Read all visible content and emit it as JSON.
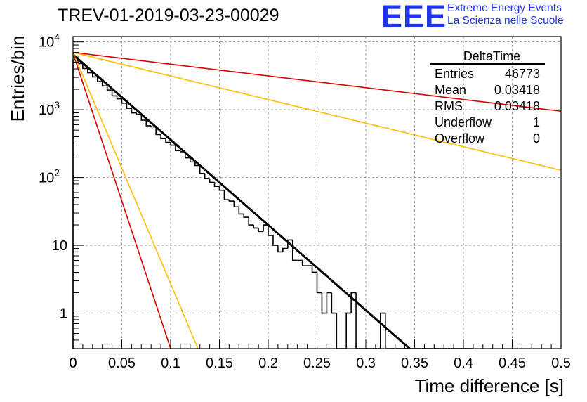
{
  "title": "TREV-01-2019-03-23-00029",
  "logo": {
    "text": "EEE",
    "line1": "Extreme Energy Events",
    "line2": "La Scienza nelle Scuole",
    "color": "#1f35e6"
  },
  "stats_box": {
    "name": "DeltaTime",
    "rows": [
      {
        "label": "Entries",
        "value": "46773"
      },
      {
        "label": "Mean",
        "value": "0.03418"
      },
      {
        "label": "RMS",
        "value": "0.03418"
      },
      {
        "label": "Underflow",
        "value": "1"
      },
      {
        "label": "Overflow",
        "value": "0"
      }
    ]
  },
  "chart_data": {
    "type": "histogram",
    "title": "TREV-01-2019-03-23-00029",
    "xlabel": "Time difference [s]",
    "ylabel": "Entries/bin",
    "xlim": [
      0,
      0.5
    ],
    "ylim": [
      0.3,
      12000
    ],
    "y_scale": "log",
    "grid": true,
    "x_ticks": [
      "0",
      "0.05",
      "0.1",
      "0.15",
      "0.2",
      "0.25",
      "0.3",
      "0.35",
      "0.4",
      "0.45",
      "0.5"
    ],
    "y_ticks": [
      {
        "value": 1,
        "label": "1"
      },
      {
        "value": 10,
        "label": "10"
      },
      {
        "value": 100,
        "label": "10",
        "exp": "2"
      },
      {
        "value": 1000,
        "label": "10",
        "exp": "3"
      },
      {
        "value": 10000,
        "label": "10",
        "exp": "4"
      }
    ],
    "histogram": {
      "bin_width": 0.005,
      "counts": [
        5400,
        4800,
        4050,
        3500,
        3050,
        2600,
        2250,
        1950,
        1600,
        1450,
        1250,
        1050,
        900,
        850,
        700,
        580,
        560,
        430,
        375,
        330,
        300,
        250,
        240,
        195,
        170,
        150,
        115,
        97,
        85,
        74,
        65,
        47,
        45,
        37,
        29,
        26,
        20,
        18,
        16,
        20,
        14,
        10,
        8,
        9,
        12,
        6,
        6,
        5,
        5,
        4,
        2,
        1,
        2,
        1,
        0,
        0,
        1,
        2,
        0,
        0,
        0,
        0,
        0,
        1,
        0,
        0,
        0,
        0,
        0,
        0,
        0,
        0,
        0,
        0,
        0,
        0,
        0,
        0,
        0,
        0,
        0,
        0
      ]
    },
    "series": [
      {
        "color": "#000000",
        "width": 3,
        "points": [
          [
            0,
            6500
          ],
          [
            0.345,
            0.3
          ]
        ]
      },
      {
        "color": "#d80000",
        "width": 1.6,
        "points": [
          [
            0,
            7000
          ],
          [
            0.5,
            950
          ]
        ]
      },
      {
        "color": "#ffbe00",
        "width": 1.6,
        "points": [
          [
            0,
            7000
          ],
          [
            0.5,
            128
          ]
        ]
      },
      {
        "color": "#d80000",
        "width": 1.6,
        "points": [
          [
            0,
            6800
          ],
          [
            0.1,
            0.3
          ]
        ]
      },
      {
        "color": "#ffbe00",
        "width": 1.6,
        "points": [
          [
            0,
            7000
          ],
          [
            0.128,
            0.3
          ]
        ]
      }
    ]
  }
}
